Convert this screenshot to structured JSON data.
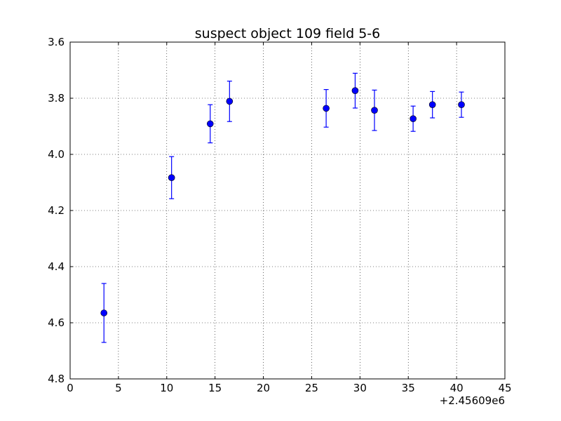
{
  "chart_data": {
    "type": "scatter",
    "title": "suspect object 109 field 5-6",
    "xlabel": "",
    "ylabel": "",
    "x_offset_label": "+2.45609e6",
    "xlim": [
      0,
      45
    ],
    "ylim": [
      3.6,
      4.8
    ],
    "y_inverted": true,
    "grid": true,
    "x_ticks": [
      0,
      5,
      10,
      15,
      20,
      25,
      30,
      35,
      40,
      45
    ],
    "x_tick_labels": [
      "0",
      "5",
      "10",
      "15",
      "20",
      "25",
      "30",
      "35",
      "40",
      "45"
    ],
    "y_ticks": [
      3.6,
      3.8,
      4.0,
      4.2,
      4.4,
      4.6,
      4.8
    ],
    "y_tick_labels": [
      "3.6",
      "3.8",
      "4.0",
      "4.2",
      "4.4",
      "4.6",
      "4.8"
    ],
    "series": [
      {
        "color": "#0000ff",
        "marker": "circle",
        "x": [
          3.5,
          10.5,
          14.5,
          16.5,
          26.5,
          29.5,
          31.5,
          35.5,
          37.5,
          40.5
        ],
        "y": [
          4.565,
          4.083,
          3.891,
          3.811,
          3.836,
          3.773,
          3.843,
          3.873,
          3.823,
          3.823
        ],
        "yerr": [
          0.105,
          0.075,
          0.068,
          0.072,
          0.067,
          0.062,
          0.072,
          0.045,
          0.047,
          0.045
        ]
      }
    ]
  }
}
